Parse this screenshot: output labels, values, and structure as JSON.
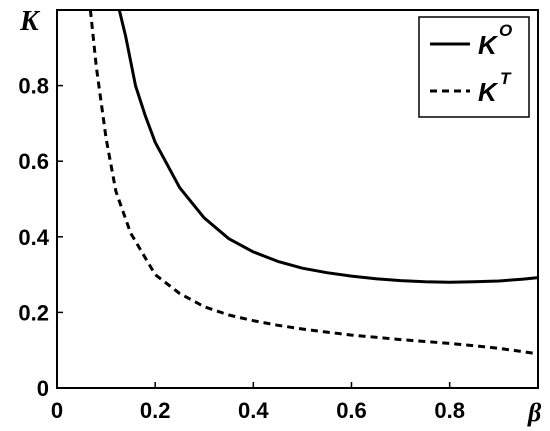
{
  "chart_data": {
    "type": "line",
    "xlabel": "β",
    "ylabel": "K",
    "xlim": [
      0,
      0.98
    ],
    "ylim": [
      0,
      1.0
    ],
    "grid": false,
    "legend_position": "top-right",
    "x_ticks": [
      {
        "value": 0,
        "label": "0"
      },
      {
        "value": 0.2,
        "label": "0.2"
      },
      {
        "value": 0.4,
        "label": "0.4"
      },
      {
        "value": 0.6,
        "label": "0.6"
      },
      {
        "value": 0.8,
        "label": "0.8"
      }
    ],
    "y_ticks": [
      {
        "value": 0,
        "label": "0"
      },
      {
        "value": 0.2,
        "label": "0.2"
      },
      {
        "value": 0.4,
        "label": "0.4"
      },
      {
        "value": 0.6,
        "label": "0.6"
      },
      {
        "value": 0.8,
        "label": "0.8"
      }
    ],
    "series": [
      {
        "name": "K",
        "superscript": "O",
        "style": "solid",
        "color": "#000000",
        "points": [
          [
            0.127,
            1.0
          ],
          [
            0.14,
            0.93
          ],
          [
            0.16,
            0.8
          ],
          [
            0.18,
            0.72
          ],
          [
            0.2,
            0.65
          ],
          [
            0.25,
            0.53
          ],
          [
            0.3,
            0.45
          ],
          [
            0.35,
            0.395
          ],
          [
            0.4,
            0.36
          ],
          [
            0.45,
            0.335
          ],
          [
            0.5,
            0.317
          ],
          [
            0.55,
            0.305
          ],
          [
            0.6,
            0.296
          ],
          [
            0.65,
            0.289
          ],
          [
            0.7,
            0.284
          ],
          [
            0.75,
            0.281
          ],
          [
            0.8,
            0.28
          ],
          [
            0.85,
            0.281
          ],
          [
            0.9,
            0.283
          ],
          [
            0.95,
            0.288
          ],
          [
            0.98,
            0.292
          ]
        ]
      },
      {
        "name": "K",
        "superscript": "T",
        "style": "dashed",
        "color": "#000000",
        "points": [
          [
            0.068,
            1.0
          ],
          [
            0.08,
            0.85
          ],
          [
            0.1,
            0.66
          ],
          [
            0.12,
            0.52
          ],
          [
            0.15,
            0.41
          ],
          [
            0.2,
            0.3
          ],
          [
            0.25,
            0.25
          ],
          [
            0.3,
            0.215
          ],
          [
            0.35,
            0.193
          ],
          [
            0.4,
            0.178
          ],
          [
            0.45,
            0.166
          ],
          [
            0.5,
            0.156
          ],
          [
            0.55,
            0.148
          ],
          [
            0.6,
            0.14
          ],
          [
            0.65,
            0.134
          ],
          [
            0.7,
            0.128
          ],
          [
            0.75,
            0.123
          ],
          [
            0.8,
            0.118
          ],
          [
            0.85,
            0.112
          ],
          [
            0.9,
            0.105
          ],
          [
            0.95,
            0.096
          ],
          [
            0.98,
            0.09
          ]
        ]
      }
    ]
  }
}
